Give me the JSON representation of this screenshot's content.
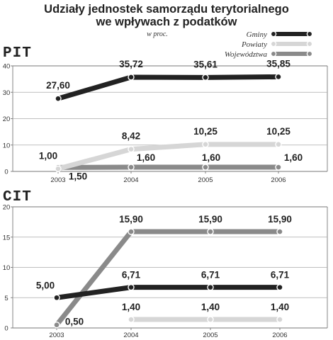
{
  "title_line1": "Udziały jednostek samorządu terytorialnego",
  "title_line2": "we wpływach z podatków",
  "subtitle": "w proc.",
  "legend": [
    {
      "name": "Gminy",
      "color": "#222222"
    },
    {
      "name": "Powiaty",
      "color": "#d6d6d6"
    },
    {
      "name": "Województwa",
      "color": "#8a8a8a"
    }
  ],
  "chart_data": [
    {
      "type": "line",
      "title": "PIT",
      "x": [
        "2003",
        "2004",
        "2005",
        "2006"
      ],
      "ylim": [
        0,
        40
      ],
      "yticks": [
        0,
        10,
        20,
        30,
        40
      ],
      "series": [
        {
          "name": "Gminy",
          "values": [
            27.6,
            35.72,
            35.61,
            35.85
          ],
          "labels": [
            "27,60",
            "35,72",
            "35,61",
            "35,85"
          ]
        },
        {
          "name": "Powiaty",
          "values": [
            1.0,
            8.42,
            10.25,
            10.25
          ],
          "labels": [
            "1,00",
            "8,42",
            "10,25",
            "10,25"
          ]
        },
        {
          "name": "Województwa",
          "values": [
            1.5,
            1.6,
            1.6,
            1.6
          ],
          "labels": [
            "1,50",
            "1,60",
            "1,60",
            "1,60"
          ]
        }
      ]
    },
    {
      "type": "line",
      "title": "CIT",
      "x": [
        "2003",
        "2004",
        "2005",
        "2006"
      ],
      "ylim": [
        0,
        20
      ],
      "yticks": [
        0,
        5,
        10,
        15,
        20
      ],
      "series": [
        {
          "name": "Gminy",
          "values": [
            5.0,
            6.71,
            6.71,
            6.71
          ],
          "labels": [
            "5,00",
            "6,71",
            "6,71",
            "6,71"
          ]
        },
        {
          "name": "Powiaty",
          "values": [
            null,
            1.4,
            1.4,
            1.4
          ],
          "labels": [
            "",
            "1,40",
            "1,40",
            "1,40"
          ]
        },
        {
          "name": "Województwa",
          "values": [
            0.5,
            15.9,
            15.9,
            15.9
          ],
          "labels": [
            "0,50",
            "15,90",
            "15,90",
            "15,90"
          ]
        }
      ]
    }
  ]
}
